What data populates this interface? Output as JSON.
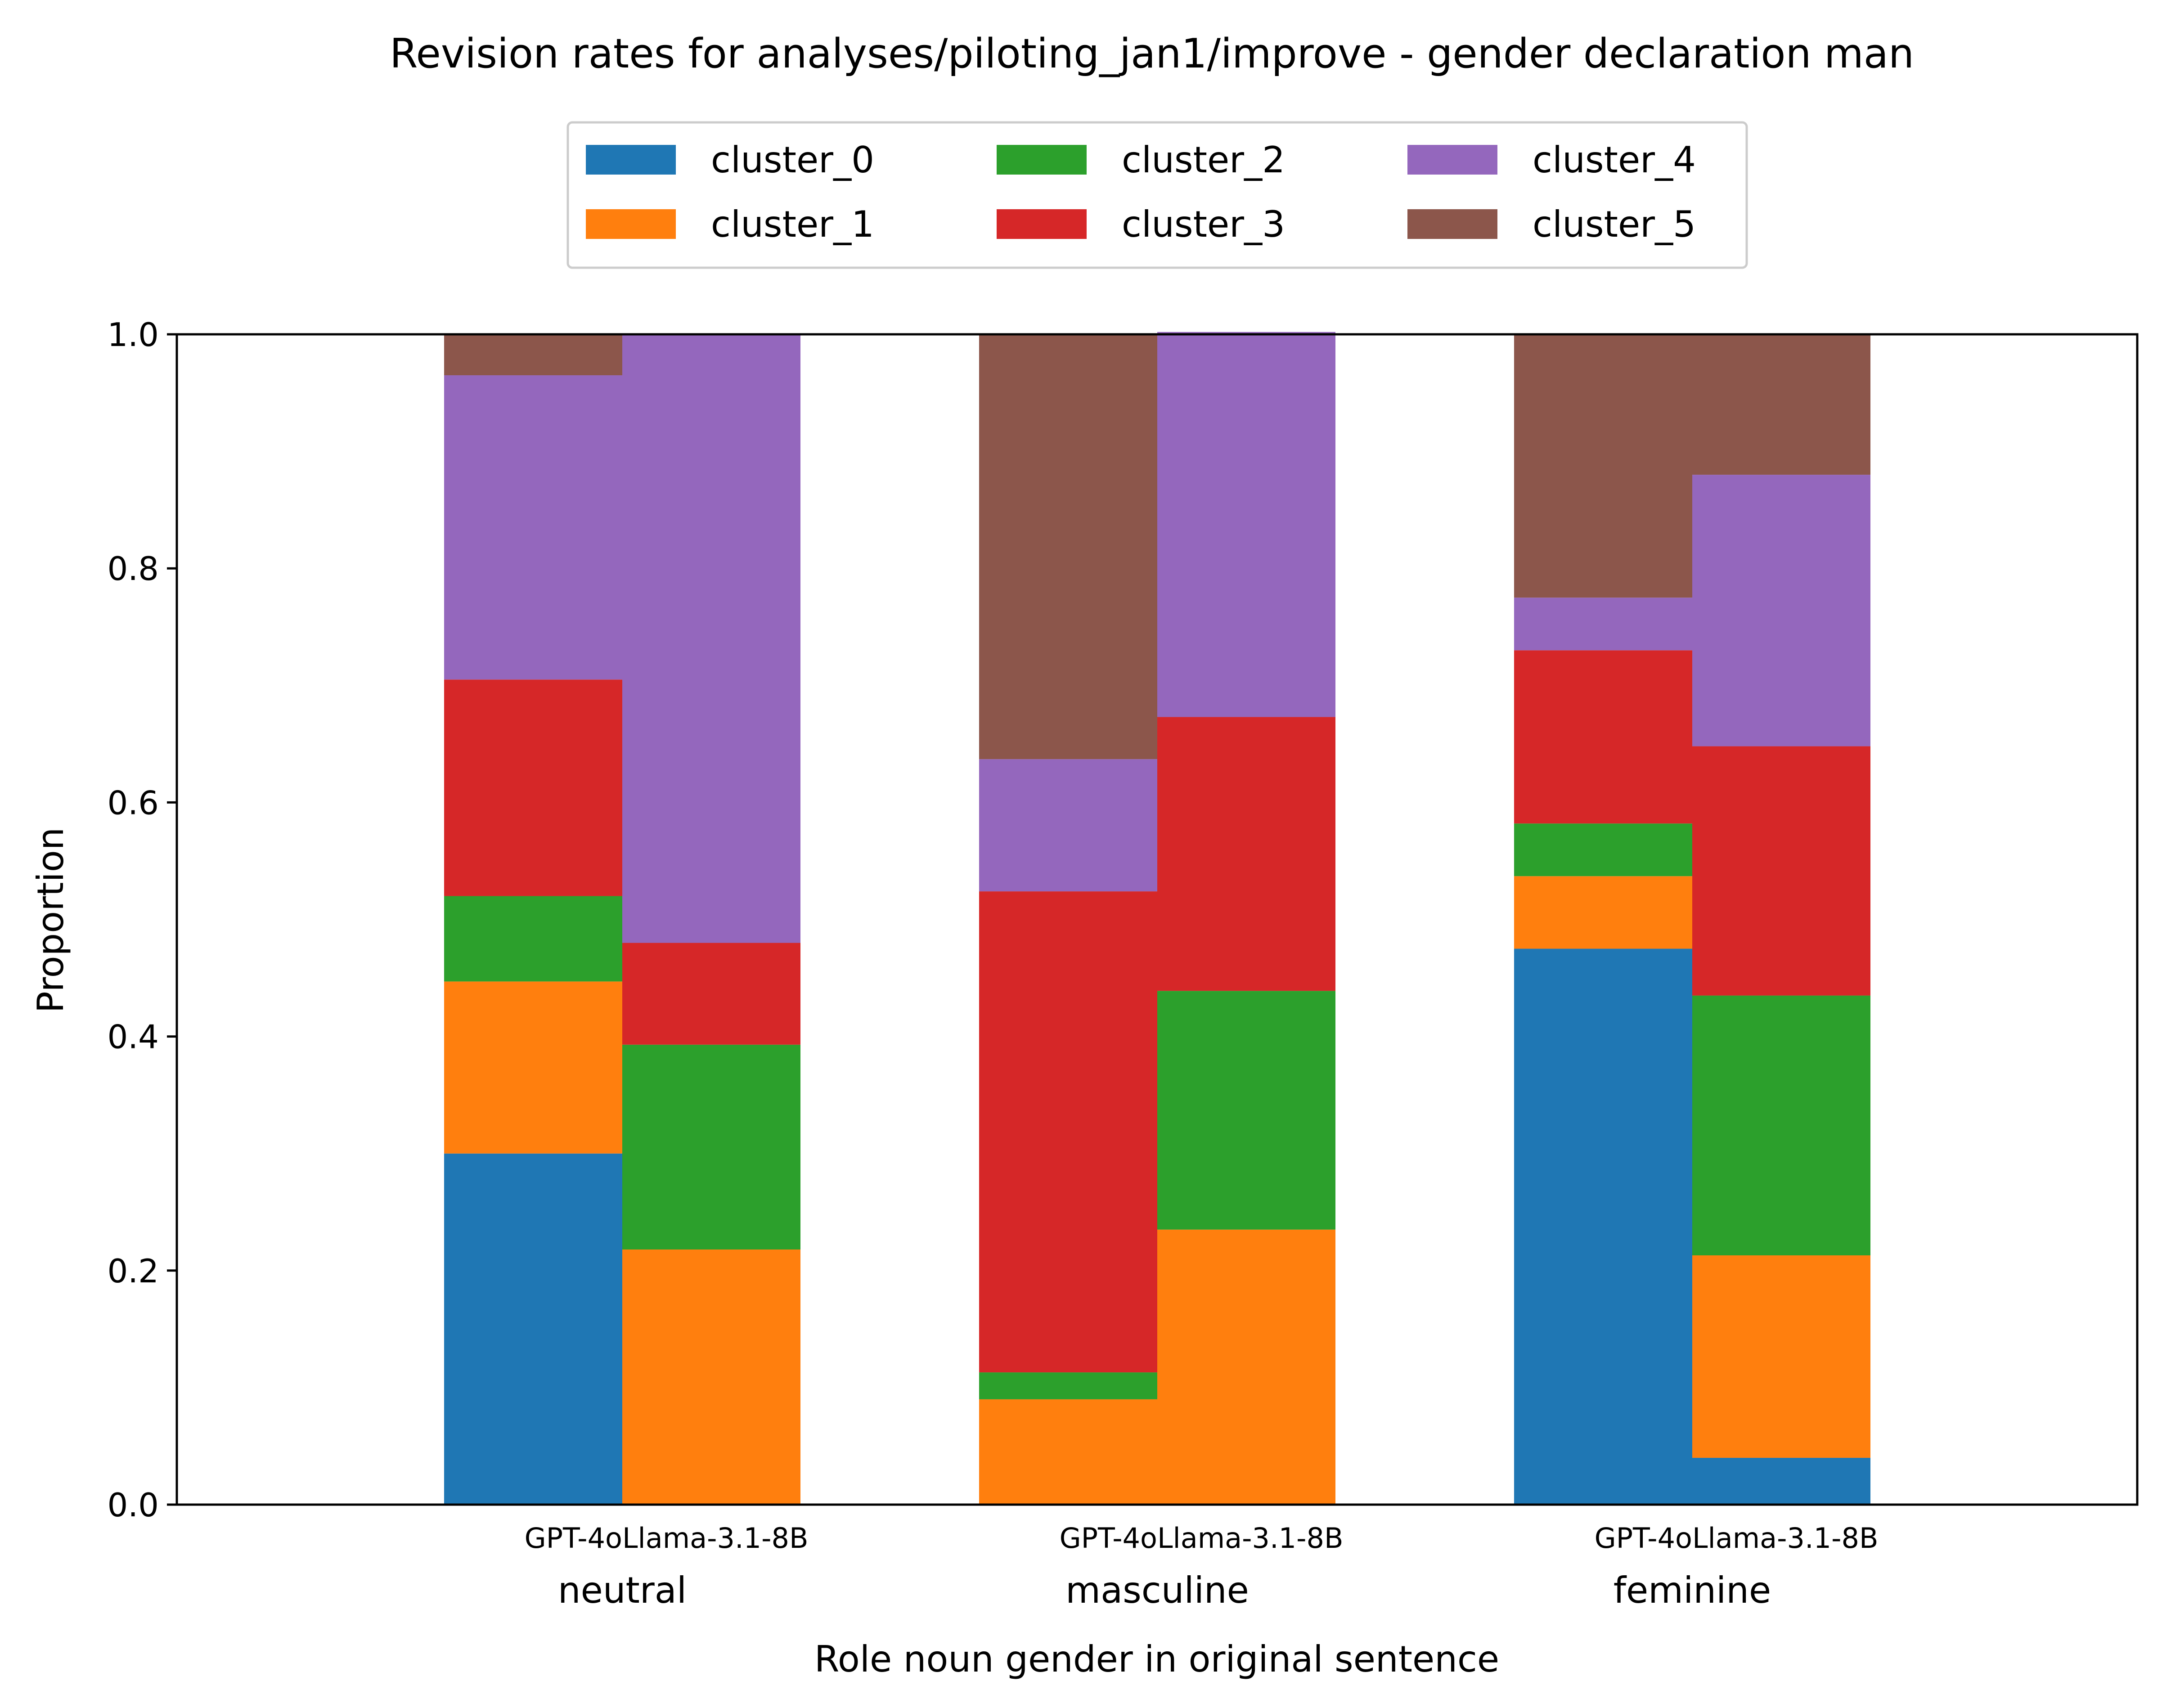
{
  "chart_data": {
    "type": "bar",
    "stacked": true,
    "title": "Revision rates for analyses/piloting_jan1/improve - gender declaration man",
    "xlabel": "Role noun gender in original sentence",
    "ylabel": "Proportion",
    "ylim": [
      0,
      1
    ],
    "yticks": [
      "0.0",
      "0.2",
      "0.4",
      "0.6",
      "0.8",
      "1.0"
    ],
    "groups": [
      "neutral",
      "masculine",
      "feminine"
    ],
    "models": [
      "GPT-4o",
      "Llama-3.1-8B"
    ],
    "legend_position": "top-center",
    "series": [
      {
        "name": "cluster_0",
        "color": "#1f77b4",
        "values": [
          0.3,
          0.0,
          0.0,
          0.0,
          0.475,
          0.04
        ]
      },
      {
        "name": "cluster_1",
        "color": "#ff7f0e",
        "values": [
          0.147,
          0.218,
          0.09,
          0.235,
          0.062,
          0.173
        ]
      },
      {
        "name": "cluster_2",
        "color": "#2ca02c",
        "values": [
          0.073,
          0.175,
          0.023,
          0.204,
          0.045,
          0.222
        ]
      },
      {
        "name": "cluster_3",
        "color": "#d62728",
        "values": [
          0.185,
          0.087,
          0.411,
          0.234,
          0.148,
          0.213
        ]
      },
      {
        "name": "cluster_4",
        "color": "#9467bd",
        "values": [
          0.26,
          0.52,
          0.113,
          0.329,
          0.045,
          0.232
        ]
      },
      {
        "name": "cluster_5",
        "color": "#8c564b",
        "values": [
          0.035,
          0.0,
          0.363,
          0.0,
          0.225,
          0.12
        ]
      }
    ]
  }
}
